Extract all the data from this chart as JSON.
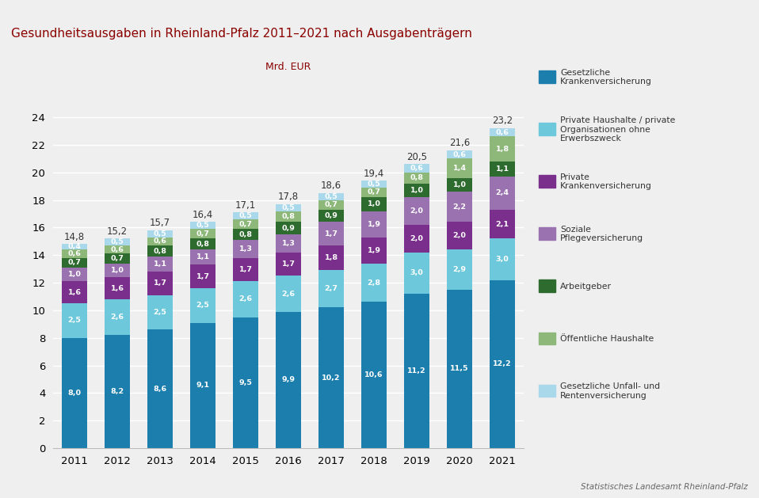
{
  "title": "Gesundheitsausgaben in Rheinland-Pfalz 2011–2021 nach Ausgabenträgern",
  "ylabel": "Mrd. EUR",
  "source": "Statistisches Landesamt Rheinland-Pfalz",
  "years": [
    2011,
    2012,
    2013,
    2014,
    2015,
    2016,
    2017,
    2018,
    2019,
    2020,
    2021
  ],
  "totals": [
    14.8,
    15.2,
    15.7,
    16.4,
    17.1,
    17.8,
    18.6,
    19.4,
    20.5,
    21.6,
    23.2
  ],
  "series": {
    "Gesetzliche Krankenversicherung": [
      8.0,
      8.2,
      8.6,
      9.1,
      9.5,
      9.9,
      10.2,
      10.6,
      11.2,
      11.5,
      12.2
    ],
    "Private Haushalte / private\nOrganisationen ohne\nErwerbszweck": [
      2.5,
      2.6,
      2.5,
      2.5,
      2.6,
      2.6,
      2.7,
      2.8,
      3.0,
      2.9,
      3.0
    ],
    "Private\nKrankenversicherung": [
      1.6,
      1.6,
      1.7,
      1.7,
      1.7,
      1.7,
      1.8,
      1.9,
      2.0,
      2.0,
      2.1
    ],
    "Soziale\nPflegeversicherung": [
      1.0,
      1.0,
      1.1,
      1.1,
      1.3,
      1.3,
      1.7,
      1.9,
      2.0,
      2.2,
      2.4
    ],
    "Arbeitgeber": [
      0.7,
      0.7,
      0.8,
      0.8,
      0.8,
      0.9,
      0.9,
      1.0,
      1.0,
      1.0,
      1.1
    ],
    "Öffentliche Haushalte": [
      0.6,
      0.6,
      0.6,
      0.7,
      0.7,
      0.8,
      0.7,
      0.7,
      0.8,
      1.4,
      1.8
    ],
    "Gesetzliche Unfall- und\nRentenversicherung": [
      0.4,
      0.5,
      0.5,
      0.5,
      0.5,
      0.5,
      0.5,
      0.5,
      0.6,
      0.6,
      0.6
    ]
  },
  "colors": {
    "Gesetzliche Krankenversicherung": "#1B7EAD",
    "Private Haushalte / private\nOrganisationen ohne\nErwerbszweck": "#6DC8DC",
    "Private\nKrankenversicherung": "#7B2F8C",
    "Soziale\nPflegeversicherung": "#9B72B0",
    "Arbeitgeber": "#2E6B2E",
    "Öffentliche Haushalte": "#8DB87A",
    "Gesetzliche Unfall- und\nRentenversicherung": "#A8D8EA"
  },
  "legend_labels": [
    "Gesetzliche\nKrankenversicherung",
    "Private Haushalte / private\nOrganisationen ohne\nErwerbszweck",
    "Private\nKrankenversicherung",
    "Soziale\nPflegeversicherung",
    "Arbeitgeber",
    "Öffentliche Haushalte",
    "Gesetzliche Unfall- und\nRentenversicherung"
  ],
  "bg_color": "#efefef",
  "title_color": "#8B0000",
  "legend_text_color": "#333333",
  "top_bar_color": "#7B0000",
  "ylim": [
    0,
    26
  ],
  "yticks": [
    0,
    2,
    4,
    6,
    8,
    10,
    12,
    14,
    16,
    18,
    20,
    22,
    24
  ]
}
